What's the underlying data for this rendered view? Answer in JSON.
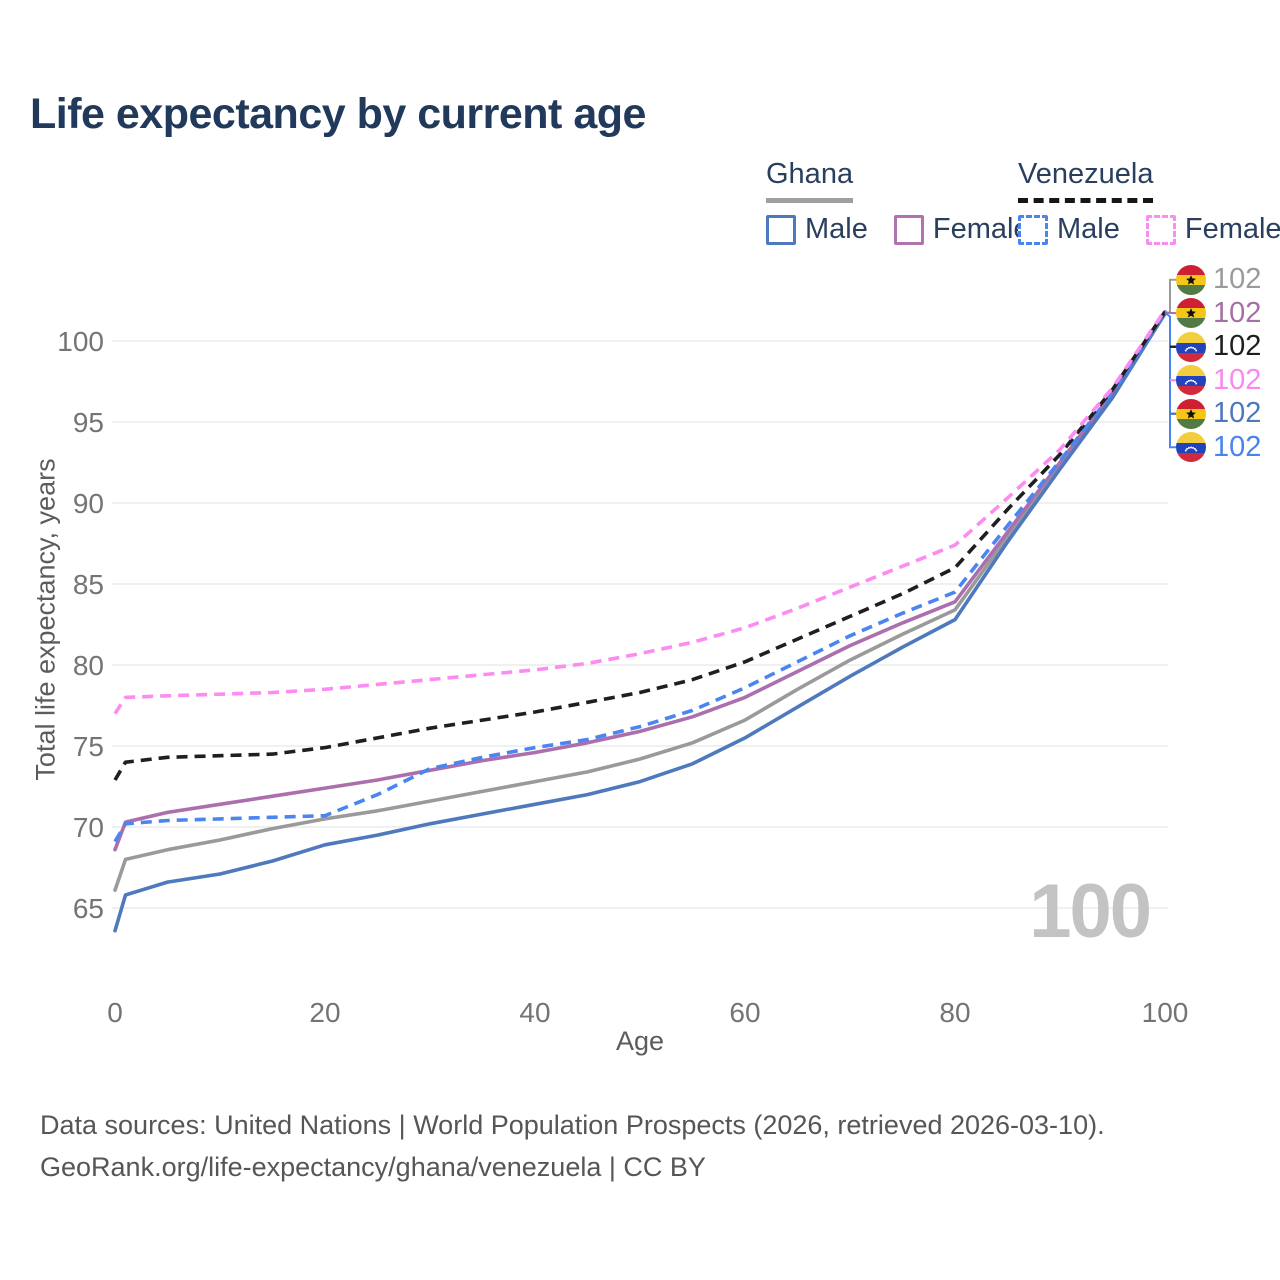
{
  "title": "Life expectancy by current age",
  "watermark_age": "100",
  "legend": {
    "groups": [
      {
        "country": "Ghana",
        "line": {
          "color": "#9f9f9f",
          "dashed": false
        },
        "items": [
          {
            "label": "Male",
            "color": "#4e79bd",
            "dashed": false
          },
          {
            "label": "Female",
            "color": "#b173ae",
            "dashed": false
          }
        ]
      },
      {
        "country": "Venezuela",
        "line": {
          "color": "#161616",
          "dashed": true
        },
        "items": [
          {
            "label": "Male",
            "color": "#4a85f0",
            "dashed": true
          },
          {
            "label": "Female",
            "color": "#fc8bf2",
            "dashed": true
          }
        ]
      }
    ]
  },
  "footer": {
    "line1": "Data sources: United Nations | World Population Prospects (2026, retrieved 2026-03-10).",
    "line2": "GeoRank.org/life-expectancy/ghana/venezuela | CC BY"
  },
  "chart_data": {
    "type": "line",
    "title": "Life expectancy by current age",
    "xlabel": "Age",
    "ylabel": "Total life expectancy, years",
    "xticks": [
      0,
      20,
      40,
      60,
      80,
      100
    ],
    "yticks": [
      65,
      70,
      75,
      80,
      85,
      90,
      95,
      100
    ],
    "xlim": [
      0,
      100
    ],
    "ylim": [
      63,
      102
    ],
    "grid": "horizontal",
    "legend_position": "top-right",
    "x": [
      0,
      1,
      5,
      10,
      15,
      20,
      25,
      30,
      35,
      40,
      45,
      50,
      55,
      60,
      65,
      70,
      75,
      80,
      85,
      90,
      95,
      100
    ],
    "series": [
      {
        "name": "Ghana — both sexes",
        "country": "Ghana",
        "sex": "both",
        "color": "#9a9a9a",
        "dashed": false,
        "values": [
          66.1,
          68.0,
          68.6,
          69.2,
          69.9,
          70.5,
          71.0,
          71.6,
          72.2,
          72.8,
          73.4,
          74.2,
          75.2,
          76.6,
          78.5,
          80.3,
          81.9,
          83.4,
          87.9,
          92.3,
          96.6,
          101.7
        ]
      },
      {
        "name": "Ghana — female",
        "country": "Ghana",
        "sex": "female",
        "color": "#ac6fae",
        "dashed": false,
        "values": [
          68.6,
          70.3,
          70.9,
          71.4,
          71.9,
          72.4,
          72.9,
          73.5,
          74.1,
          74.6,
          75.2,
          75.9,
          76.8,
          78.0,
          79.6,
          81.2,
          82.6,
          83.9,
          88.2,
          92.5,
          96.8,
          101.8
        ]
      },
      {
        "name": "Ghana — male",
        "country": "Ghana",
        "sex": "male",
        "color": "#4e79bd",
        "dashed": false,
        "values": [
          63.6,
          65.8,
          66.6,
          67.1,
          67.9,
          68.9,
          69.5,
          70.2,
          70.8,
          71.4,
          72.0,
          72.8,
          73.9,
          75.5,
          77.4,
          79.3,
          81.1,
          82.8,
          87.6,
          92.1,
          96.5,
          101.7
        ]
      },
      {
        "name": "Venezuela — male",
        "country": "Venezuela",
        "sex": "male",
        "color": "#4a85f0",
        "dashed": true,
        "values": [
          69.1,
          70.2,
          70.4,
          70.5,
          70.6,
          70.7,
          72.0,
          73.6,
          74.3,
          74.9,
          75.4,
          76.2,
          77.2,
          78.6,
          80.2,
          81.8,
          83.2,
          84.5,
          88.6,
          92.6,
          96.8,
          101.8
        ]
      },
      {
        "name": "Venezuela — both sexes",
        "country": "Venezuela",
        "sex": "both",
        "color": "#1f1f1f",
        "dashed": true,
        "values": [
          72.9,
          74.0,
          74.3,
          74.4,
          74.5,
          74.9,
          75.5,
          76.1,
          76.6,
          77.1,
          77.7,
          78.3,
          79.1,
          80.2,
          81.6,
          83.0,
          84.4,
          86.0,
          89.6,
          93.0,
          97.0,
          101.8
        ]
      },
      {
        "name": "Venezuela — female",
        "country": "Venezuela",
        "sex": "female",
        "color": "#fc8bf2",
        "dashed": true,
        "values": [
          77.0,
          78.0,
          78.1,
          78.2,
          78.3,
          78.5,
          78.8,
          79.1,
          79.4,
          79.7,
          80.1,
          80.7,
          81.4,
          82.3,
          83.5,
          84.8,
          86.1,
          87.4,
          90.3,
          93.3,
          97.1,
          101.9
        ]
      }
    ],
    "end_labels": [
      {
        "flag": "ghana",
        "value": "102",
        "color": "#9a9a9a"
      },
      {
        "flag": "ghana",
        "value": "102",
        "color": "#a471a7"
      },
      {
        "flag": "venezuela",
        "value": "102",
        "color": "#1f1f1f"
      },
      {
        "flag": "venezuela",
        "value": "102",
        "color": "#fb87f3"
      },
      {
        "flag": "ghana",
        "value": "102",
        "color": "#4e79bd"
      },
      {
        "flag": "venezuela",
        "value": "102",
        "color": "#4a83f0"
      }
    ]
  }
}
